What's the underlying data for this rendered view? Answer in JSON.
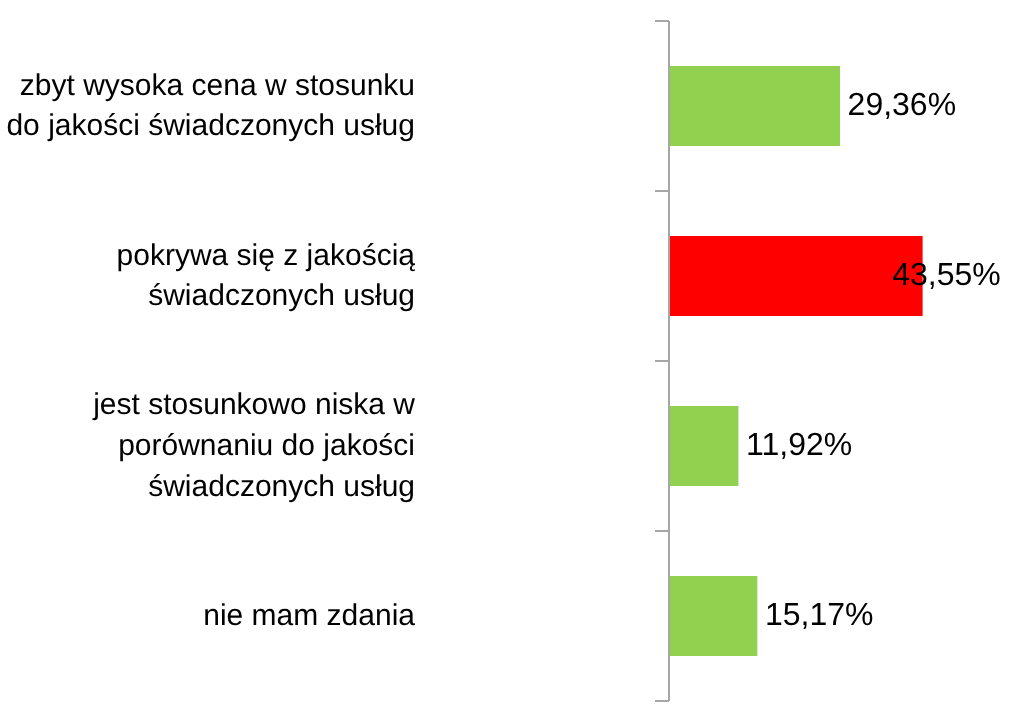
{
  "chart_data": {
    "type": "bar",
    "orientation": "horizontal",
    "categories": [
      "zbyt wysoka cena w stosunku do jakości świadczonych usług",
      "pokrywa się z jakością świadczonych usług",
      "jest stosunkowo niska w porównaniu do jakości świadczonych usług",
      "nie mam zdania"
    ],
    "values": [
      29.36,
      43.55,
      11.92,
      15.17
    ],
    "colors": [
      "#92d050",
      "#ff0000",
      "#92d050",
      "#92d050"
    ],
    "value_labels": [
      "29,36%",
      "43,55%",
      "11,92%",
      "15,17%"
    ],
    "grid": false
  }
}
